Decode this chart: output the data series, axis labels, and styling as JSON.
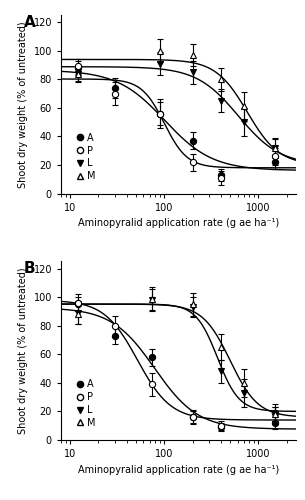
{
  "panel_A": {
    "label": "A",
    "x_data": {
      "A": [
        12,
        30,
        90,
        200,
        400,
        1500
      ],
      "P": [
        12,
        30,
        90,
        200,
        400,
        1500
      ],
      "L": [
        12,
        90,
        200,
        400,
        700,
        1500
      ],
      "M": [
        12,
        90,
        200,
        400,
        700,
        1500
      ]
    },
    "y_data": {
      "A": [
        88,
        74,
        56,
        37,
        13,
        22
      ],
      "P": [
        89,
        70,
        56,
        22,
        11,
        26
      ],
      "L": [
        84,
        91,
        85,
        65,
        50,
        32
      ],
      "M": [
        84,
        100,
        97,
        80,
        61,
        32
      ]
    },
    "y_err": {
      "A": [
        5,
        7,
        8,
        6,
        4,
        5
      ],
      "P": [
        5,
        8,
        10,
        6,
        5,
        6
      ],
      "L": [
        5,
        8,
        8,
        8,
        10,
        6
      ],
      "M": [
        6,
        8,
        8,
        8,
        10,
        7
      ]
    }
  },
  "panel_B": {
    "label": "B",
    "x_data": {
      "A": [
        12,
        30,
        75,
        200,
        400,
        1500
      ],
      "P": [
        12,
        30,
        75,
        200,
        400,
        1500
      ],
      "L": [
        12,
        75,
        200,
        400,
        700,
        1500
      ],
      "M": [
        12,
        75,
        200,
        400,
        700,
        1500
      ]
    },
    "y_data": {
      "A": [
        95,
        73,
        58,
        16,
        9,
        12
      ],
      "P": [
        96,
        80,
        39,
        16,
        10,
        19
      ],
      "L": [
        89,
        98,
        93,
        48,
        33,
        18
      ],
      "M": [
        88,
        99,
        95,
        65,
        40,
        18
      ]
    },
    "y_err": {
      "A": [
        5,
        6,
        6,
        4,
        3,
        4
      ],
      "P": [
        6,
        7,
        8,
        5,
        3,
        6
      ],
      "L": [
        8,
        8,
        7,
        8,
        10,
        5
      ],
      "M": [
        7,
        8,
        8,
        9,
        10,
        5
      ]
    }
  },
  "ylim": [
    0,
    125
  ],
  "yticks": [
    0,
    20,
    40,
    60,
    80,
    100,
    120
  ],
  "xlim": [
    8,
    2500
  ],
  "xlabel": "Aminopyralid application rate (g ae ha⁻¹)",
  "ylabel": "Shoot dry weight (% of untreated)",
  "line_colors": {
    "A": "black",
    "P": "black",
    "L": "black",
    "M": "black"
  },
  "line_styles": {
    "A": "-",
    "P": "-",
    "L": "-",
    "M": "-"
  },
  "curve_params_A": {
    "A": {
      "b": 1.6,
      "c": 100,
      "d": 0,
      "e": 75
    },
    "P": {
      "b": 1.5,
      "c": 100,
      "d": 0,
      "e": 90
    },
    "L": {
      "b": 2.5,
      "c": 100,
      "d": 0,
      "e": 650
    },
    "M": {
      "b": 2.5,
      "c": 100,
      "d": 0,
      "e": 850
    }
  },
  "curve_params_B": {
    "A": {
      "b": 1.8,
      "c": 100,
      "d": 0,
      "e": 55
    },
    "P": {
      "b": 1.7,
      "c": 100,
      "d": 0,
      "e": 65
    },
    "L": {
      "b": 2.8,
      "c": 100,
      "d": 0,
      "e": 500
    },
    "M": {
      "b": 2.8,
      "c": 100,
      "d": 0,
      "e": 700
    }
  }
}
